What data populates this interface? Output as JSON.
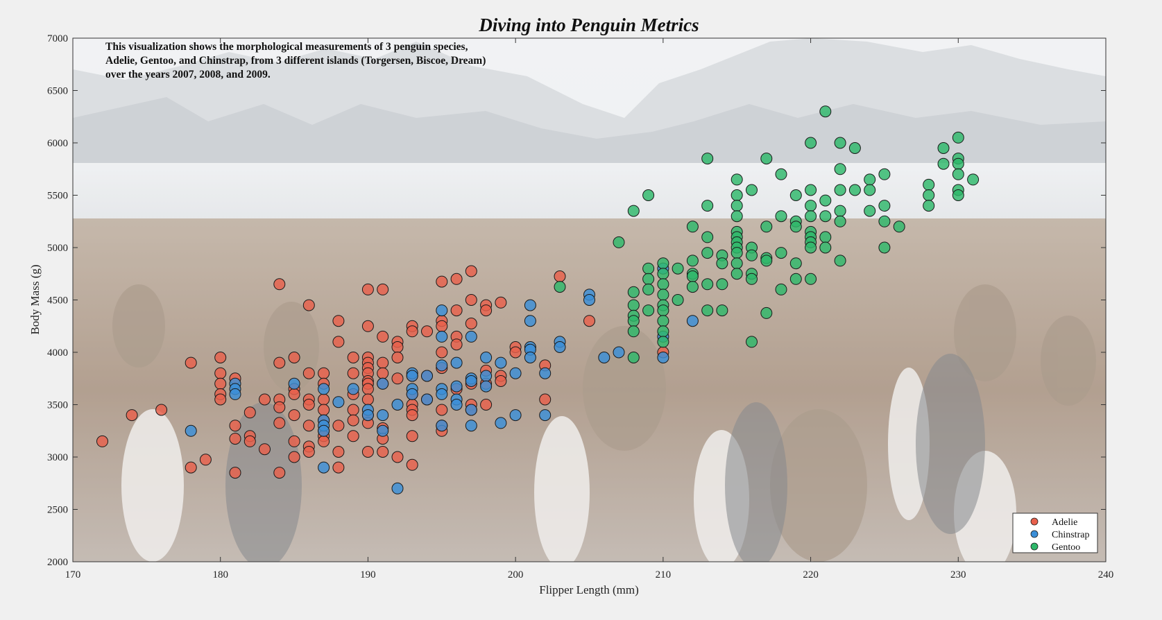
{
  "chart_data": {
    "type": "scatter",
    "title": "Diving into Penguin Metrics",
    "xlabel": "Flipper Length (mm)",
    "ylabel": "Body Mass (g)",
    "xlim": [
      170,
      240
    ],
    "ylim": [
      2000,
      7000
    ],
    "xticks": [
      170,
      180,
      190,
      200,
      210,
      220,
      230,
      240
    ],
    "yticks": [
      2000,
      2500,
      3000,
      3500,
      4000,
      4500,
      5000,
      5500,
      6000,
      6500,
      7000
    ],
    "grid": false,
    "legend_position": "bottom-right",
    "background": "photo of penguin colony with snowy mountains (faded)",
    "annotation": [
      "This visualization shows the morphological measurements of 3 penguin species,",
      "Adelie, Gentoo, and Chinstrap, from 3 different islands (Torgersen, Biscoe, Dream)",
      "over the years 2007, 2008, and 2009."
    ],
    "series": [
      {
        "name": "Adelie",
        "color": "#e8604c",
        "points": [
          [
            172,
            3150
          ],
          [
            174,
            3400
          ],
          [
            176,
            3450
          ],
          [
            178,
            3900
          ],
          [
            178,
            2900
          ],
          [
            179,
            2975
          ],
          [
            180,
            3950
          ],
          [
            180,
            3800
          ],
          [
            180,
            3700
          ],
          [
            180,
            3600
          ],
          [
            180,
            3550
          ],
          [
            181,
            3750
          ],
          [
            181,
            3300
          ],
          [
            181,
            3175
          ],
          [
            181,
            2850
          ],
          [
            182,
            3425
          ],
          [
            182,
            3200
          ],
          [
            182,
            3150
          ],
          [
            183,
            3550
          ],
          [
            183,
            3075
          ],
          [
            184,
            4650
          ],
          [
            184,
            3900
          ],
          [
            184,
            3550
          ],
          [
            184,
            3475
          ],
          [
            184,
            3325
          ],
          [
            184,
            2850
          ],
          [
            185,
            3950
          ],
          [
            185,
            3650
          ],
          [
            185,
            3600
          ],
          [
            185,
            3400
          ],
          [
            185,
            3150
          ],
          [
            185,
            3000
          ],
          [
            186,
            4450
          ],
          [
            186,
            3800
          ],
          [
            186,
            3550
          ],
          [
            186,
            3500
          ],
          [
            186,
            3300
          ],
          [
            186,
            3100
          ],
          [
            186,
            3050
          ],
          [
            187,
            3800
          ],
          [
            187,
            3700
          ],
          [
            187,
            3550
          ],
          [
            187,
            3450
          ],
          [
            187,
            3350
          ],
          [
            187,
            3250
          ],
          [
            187,
            3200
          ],
          [
            187,
            3150
          ],
          [
            188,
            4300
          ],
          [
            188,
            4100
          ],
          [
            188,
            3300
          ],
          [
            188,
            3050
          ],
          [
            188,
            2900
          ],
          [
            189,
            3950
          ],
          [
            189,
            3800
          ],
          [
            189,
            3600
          ],
          [
            189,
            3450
          ],
          [
            189,
            3350
          ],
          [
            189,
            3200
          ],
          [
            190,
            4600
          ],
          [
            190,
            4250
          ],
          [
            190,
            3950
          ],
          [
            190,
            3900
          ],
          [
            190,
            3850
          ],
          [
            190,
            3800
          ],
          [
            190,
            3725
          ],
          [
            190,
            3700
          ],
          [
            190,
            3650
          ],
          [
            190,
            3550
          ],
          [
            190,
            3400
          ],
          [
            190,
            3325
          ],
          [
            190,
            3050
          ],
          [
            191,
            4600
          ],
          [
            191,
            4150
          ],
          [
            191,
            3900
          ],
          [
            191,
            3800
          ],
          [
            191,
            3700
          ],
          [
            191,
            3275
          ],
          [
            191,
            3175
          ],
          [
            191,
            3050
          ],
          [
            192,
            4100
          ],
          [
            192,
            4050
          ],
          [
            192,
            3950
          ],
          [
            192,
            3750
          ],
          [
            192,
            3000
          ],
          [
            193,
            4250
          ],
          [
            193,
            4200
          ],
          [
            193,
            3775
          ],
          [
            193,
            3600
          ],
          [
            193,
            3500
          ],
          [
            193,
            3450
          ],
          [
            193,
            3400
          ],
          [
            193,
            3200
          ],
          [
            193,
            2925
          ],
          [
            194,
            4200
          ],
          [
            194,
            3775
          ],
          [
            194,
            3550
          ],
          [
            195,
            4675
          ],
          [
            195,
            4300
          ],
          [
            195,
            4250
          ],
          [
            195,
            4000
          ],
          [
            195,
            3850
          ],
          [
            195,
            3450
          ],
          [
            195,
            3300
          ],
          [
            195,
            3250
          ],
          [
            196,
            4700
          ],
          [
            196,
            4400
          ],
          [
            196,
            4150
          ],
          [
            196,
            4075
          ],
          [
            196,
            3650
          ],
          [
            197,
            4775
          ],
          [
            197,
            4500
          ],
          [
            197,
            4275
          ],
          [
            197,
            3700
          ],
          [
            197,
            3500
          ],
          [
            197,
            3450
          ],
          [
            198,
            4450
          ],
          [
            198,
            4400
          ],
          [
            198,
            3825
          ],
          [
            198,
            3700
          ],
          [
            198,
            3500
          ],
          [
            199,
            4475
          ],
          [
            199,
            3775
          ],
          [
            199,
            3725
          ],
          [
            200,
            4050
          ],
          [
            200,
            4000
          ],
          [
            202,
            3875
          ],
          [
            202,
            3550
          ],
          [
            203,
            4725
          ],
          [
            205,
            4300
          ],
          [
            210,
            4000
          ]
        ]
      },
      {
        "name": "Chinstrap",
        "color": "#3b8fd8",
        "points": [
          [
            178,
            3250
          ],
          [
            181,
            3700
          ],
          [
            181,
            3650
          ],
          [
            181,
            3600
          ],
          [
            185,
            3700
          ],
          [
            187,
            3650
          ],
          [
            187,
            3350
          ],
          [
            187,
            3300
          ],
          [
            187,
            3250
          ],
          [
            187,
            2900
          ],
          [
            188,
            3525
          ],
          [
            189,
            3650
          ],
          [
            190,
            3450
          ],
          [
            190,
            3400
          ],
          [
            191,
            3700
          ],
          [
            191,
            3400
          ],
          [
            191,
            3250
          ],
          [
            192,
            3500
          ],
          [
            192,
            2700
          ],
          [
            193,
            3800
          ],
          [
            193,
            3775
          ],
          [
            193,
            3650
          ],
          [
            193,
            3600
          ],
          [
            194,
            3775
          ],
          [
            194,
            3550
          ],
          [
            195,
            4400
          ],
          [
            195,
            4150
          ],
          [
            195,
            3875
          ],
          [
            195,
            3650
          ],
          [
            195,
            3600
          ],
          [
            195,
            3300
          ],
          [
            196,
            3900
          ],
          [
            196,
            3675
          ],
          [
            196,
            3550
          ],
          [
            196,
            3500
          ],
          [
            197,
            4150
          ],
          [
            197,
            3750
          ],
          [
            197,
            3725
          ],
          [
            197,
            3450
          ],
          [
            197,
            3300
          ],
          [
            198,
            3950
          ],
          [
            198,
            3775
          ],
          [
            198,
            3675
          ],
          [
            199,
            3900
          ],
          [
            199,
            3325
          ],
          [
            200,
            3800
          ],
          [
            200,
            3400
          ],
          [
            201,
            4450
          ],
          [
            201,
            4300
          ],
          [
            201,
            4050
          ],
          [
            201,
            4025
          ],
          [
            201,
            3950
          ],
          [
            202,
            3800
          ],
          [
            202,
            3400
          ],
          [
            203,
            4100
          ],
          [
            203,
            4050
          ],
          [
            205,
            4550
          ],
          [
            205,
            4500
          ],
          [
            206,
            3950
          ],
          [
            207,
            4000
          ],
          [
            210,
            4800
          ],
          [
            210,
            4150
          ],
          [
            210,
            3950
          ],
          [
            212,
            4300
          ]
        ]
      },
      {
        "name": "Gentoo",
        "color": "#2eb86a",
        "points": [
          [
            203,
            4625
          ],
          [
            207,
            5050
          ],
          [
            208,
            5350
          ],
          [
            208,
            4575
          ],
          [
            208,
            4450
          ],
          [
            208,
            4350
          ],
          [
            208,
            4300
          ],
          [
            208,
            4200
          ],
          [
            208,
            3950
          ],
          [
            209,
            5500
          ],
          [
            209,
            4800
          ],
          [
            209,
            4700
          ],
          [
            209,
            4600
          ],
          [
            209,
            4400
          ],
          [
            210,
            4850
          ],
          [
            210,
            4750
          ],
          [
            210,
            4650
          ],
          [
            210,
            4550
          ],
          [
            210,
            4450
          ],
          [
            210,
            4400
          ],
          [
            210,
            4300
          ],
          [
            210,
            4200
          ],
          [
            210,
            4100
          ],
          [
            211,
            4800
          ],
          [
            211,
            4500
          ],
          [
            212,
            5200
          ],
          [
            212,
            4875
          ],
          [
            212,
            4750
          ],
          [
            212,
            4725
          ],
          [
            212,
            4625
          ],
          [
            213,
            5850
          ],
          [
            213,
            5400
          ],
          [
            213,
            5100
          ],
          [
            213,
            4950
          ],
          [
            213,
            4650
          ],
          [
            213,
            4400
          ],
          [
            214,
            4925
          ],
          [
            214,
            4850
          ],
          [
            214,
            4650
          ],
          [
            214,
            4400
          ],
          [
            215,
            5650
          ],
          [
            215,
            5500
          ],
          [
            215,
            5400
          ],
          [
            215,
            5300
          ],
          [
            215,
            5150
          ],
          [
            215,
            5100
          ],
          [
            215,
            5050
          ],
          [
            215,
            5000
          ],
          [
            215,
            4950
          ],
          [
            215,
            4850
          ],
          [
            215,
            4750
          ],
          [
            216,
            5550
          ],
          [
            216,
            5000
          ],
          [
            216,
            4925
          ],
          [
            216,
            4750
          ],
          [
            216,
            4700
          ],
          [
            216,
            4100
          ],
          [
            217,
            5850
          ],
          [
            217,
            5200
          ],
          [
            217,
            4900
          ],
          [
            217,
            4875
          ],
          [
            217,
            4375
          ],
          [
            218,
            5700
          ],
          [
            218,
            5300
          ],
          [
            218,
            4950
          ],
          [
            218,
            4600
          ],
          [
            219,
            5500
          ],
          [
            219,
            5250
          ],
          [
            219,
            5200
          ],
          [
            219,
            4850
          ],
          [
            219,
            4700
          ],
          [
            220,
            6000
          ],
          [
            220,
            5550
          ],
          [
            220,
            5400
          ],
          [
            220,
            5300
          ],
          [
            220,
            5150
          ],
          [
            220,
            5100
          ],
          [
            220,
            5050
          ],
          [
            220,
            5000
          ],
          [
            220,
            4700
          ],
          [
            221,
            6300
          ],
          [
            221,
            5450
          ],
          [
            221,
            5300
          ],
          [
            221,
            5100
          ],
          [
            221,
            5000
          ],
          [
            222,
            6000
          ],
          [
            222,
            5750
          ],
          [
            222,
            5550
          ],
          [
            222,
            5350
          ],
          [
            222,
            5250
          ],
          [
            222,
            4875
          ],
          [
            223,
            5950
          ],
          [
            223,
            5550
          ],
          [
            224,
            5650
          ],
          [
            224,
            5550
          ],
          [
            224,
            5350
          ],
          [
            225,
            5700
          ],
          [
            225,
            5400
          ],
          [
            225,
            5250
          ],
          [
            225,
            5000
          ],
          [
            226,
            5200
          ],
          [
            228,
            5600
          ],
          [
            228,
            5500
          ],
          [
            228,
            5400
          ],
          [
            229,
            5950
          ],
          [
            229,
            5800
          ],
          [
            230,
            6050
          ],
          [
            230,
            5850
          ],
          [
            230,
            5800
          ],
          [
            230,
            5700
          ],
          [
            230,
            5550
          ],
          [
            230,
            5500
          ],
          [
            231,
            5650
          ]
        ]
      }
    ]
  }
}
